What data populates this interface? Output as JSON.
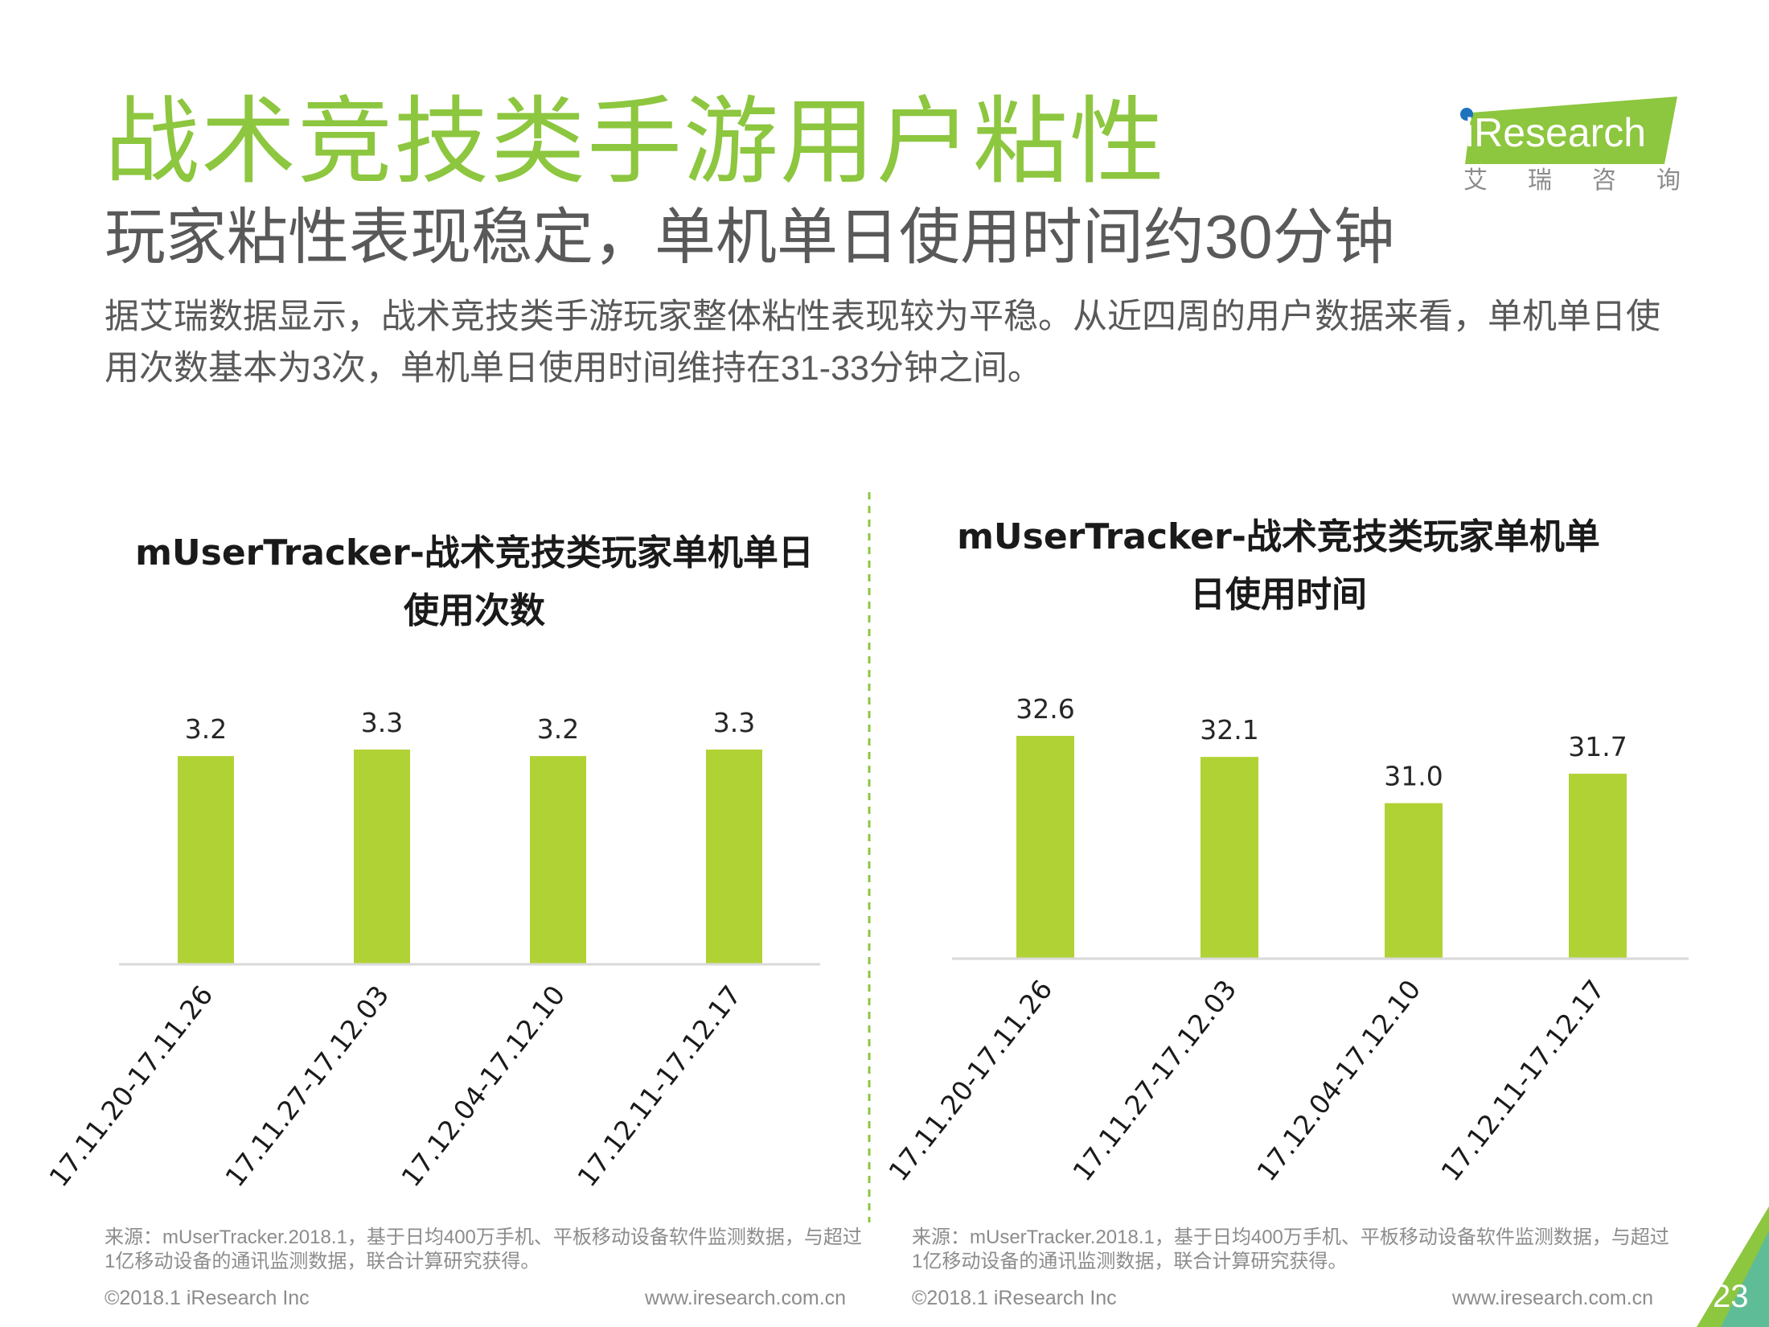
{
  "header": {
    "title": "战术竞技类手游用户粘性",
    "subtitle": "玩家粘性表现稳定，单机单日使用时间约30分钟",
    "description": "据艾瑞数据显示，战术竞技类手游玩家整体粘性表现较为平稳。从近四周的用户数据来看，单机单日使用次数基本为3次，单机单日使用时间维持在31-33分钟之间。"
  },
  "logo": {
    "wordmark": "iResearch",
    "tagline": [
      "艾",
      "瑞",
      "咨",
      "询"
    ]
  },
  "colors": {
    "accent": "#8dc63f",
    "bar": "#b1d235",
    "divider": "#8dc63f",
    "axis": "#d9d9d9"
  },
  "chart_data": [
    {
      "type": "bar",
      "title": "mUserTracker-战术竞技类玩家单机单日使用次数",
      "title_lines": [
        "mUserTracker-战术竞技类玩家单机单日",
        "使用次数"
      ],
      "categories": [
        "17.11.20-17.11.26",
        "17.11.27-17.12.03",
        "17.12.04-17.12.10",
        "17.12.11-17.12.17"
      ],
      "values": [
        3.2,
        3.3,
        3.2,
        3.3
      ],
      "value_labels": [
        "3.2",
        "3.3",
        "3.2",
        "3.3"
      ],
      "ylim": [
        0,
        3.3
      ],
      "grid": false,
      "legend": "none"
    },
    {
      "type": "bar",
      "title": "mUserTracker-战术竞技类玩家单机单日使用时间",
      "title_lines": [
        "mUserTracker-战术竞技类玩家单机单",
        "日使用时间"
      ],
      "categories": [
        "17.11.20-17.11.26",
        "17.11.27-17.12.03",
        "17.12.04-17.12.10",
        "17.12.11-17.12.17"
      ],
      "values": [
        32.6,
        32.1,
        31.0,
        31.7
      ],
      "value_labels": [
        "32.6",
        "32.1",
        "31.0",
        "31.7"
      ],
      "ylim": [
        27.3,
        32.6
      ],
      "grid": false,
      "legend": "none"
    }
  ],
  "sources": {
    "left": "来源：mUserTracker.2018.1，基于日均400万手机、平板移动设备软件监测数据，与超过1亿移动设备的通讯监测数据，联合计算研究获得。",
    "right": "来源：mUserTracker.2018.1，基于日均400万手机、平板移动设备软件监测数据，与超过1亿移动设备的通讯监测数据，联合计算研究获得。"
  },
  "footer": {
    "copyright_left": "©2018.1 iResearch Inc",
    "url_left": "www.iresearch.com.cn",
    "copyright_right": "©2018.1 iResearch Inc",
    "url_right": "www.iresearch.com.cn",
    "page_number": "23"
  }
}
